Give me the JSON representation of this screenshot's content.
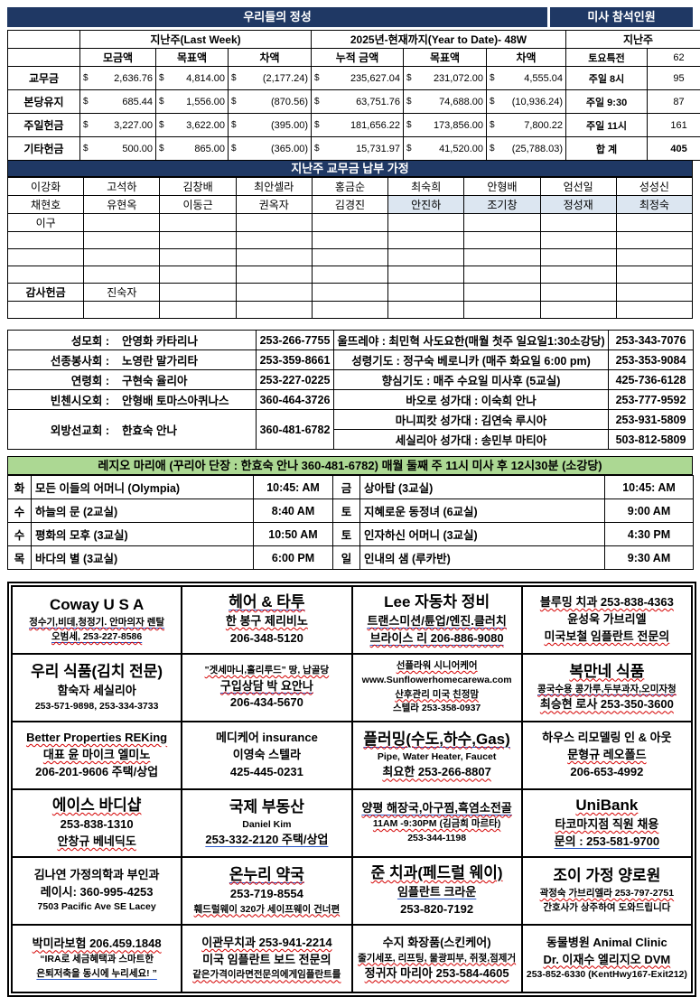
{
  "colors": {
    "navy": "#1F3864",
    "highlight_blue": "#DCE6F1",
    "green": "#ACD893",
    "wavy_red": "#d40000",
    "underline_blue": "#2857c8"
  },
  "offerings": {
    "title": "우리들의 정성",
    "attendance_title": "미사 참석인원",
    "last_week_header": "지난주(Last Week)",
    "ytd_header": "2025년-현재까지(Year to Date)- 48W",
    "attendance_sub": "지난주",
    "currency": "$",
    "col_headers": [
      "모금액",
      "목표액",
      "차액",
      "누적 금액",
      "목표액",
      "차액"
    ],
    "attendance_header_row": {
      "label": "토요특전",
      "value": "62"
    },
    "rows": [
      {
        "label": "교무금",
        "amounts": [
          "2,636.76",
          "4,814.00",
          "(2,177.24)",
          "235,627.04",
          "231,072.00",
          "4,555.04"
        ],
        "att_label": "주일 8시",
        "att_value": "95"
      },
      {
        "label": "본당유지",
        "amounts": [
          "685.44",
          "1,556.00",
          "(870.56)",
          "63,751.76",
          "74,688.00",
          "(10,936.24)"
        ],
        "att_label": "주일 9:30",
        "att_value": "87"
      },
      {
        "label": "주일헌금",
        "amounts": [
          "3,227.00",
          "3,622.00",
          "(395.00)",
          "181,656.22",
          "173,856.00",
          "7,800.22"
        ],
        "att_label": "주일 11시",
        "att_value": "161"
      },
      {
        "label": "기타헌금",
        "amounts": [
          "500.00",
          "865.00",
          "(365.00)",
          "15,731.97",
          "41,520.00",
          "(25,788.03)"
        ],
        "att_label": "합 계",
        "att_value": "405",
        "total_row": true
      }
    ]
  },
  "donors": {
    "title": "지난주 교무금 납부 가정",
    "rows": [
      [
        "이강화",
        "고석하",
        "김창배",
        "최안셀라",
        "홍금순",
        "최숙희",
        "안형배",
        "엄선일",
        "성성신"
      ],
      [
        "채현호",
        "유현옥",
        "이동근",
        "권옥자",
        "김경진",
        "안진하",
        "조기창",
        "정성재",
        "최정숙"
      ],
      [
        "이구",
        "",
        "",
        "",
        "",
        "",
        "",
        "",
        ""
      ],
      [
        "",
        "",
        "",
        "",
        "",
        "",
        "",
        "",
        ""
      ],
      [
        "",
        "",
        "",
        "",
        "",
        "",
        "",
        "",
        ""
      ],
      [
        "",
        "",
        "",
        "",
        "",
        "",
        "",
        "",
        ""
      ],
      [
        "감사헌금",
        "진숙자",
        "",
        "",
        "",
        "",
        "",
        "",
        ""
      ],
      [
        "",
        "",
        "",
        "",
        "",
        "",
        "",
        "",
        ""
      ]
    ],
    "highlight_cells": [
      [
        1,
        5
      ],
      [
        1,
        6
      ],
      [
        1,
        7
      ],
      [
        1,
        8
      ]
    ],
    "bold_cells": [
      [
        6,
        0
      ]
    ]
  },
  "groups": {
    "rows": [
      {
        "left_label": "성모회 :",
        "left_name": "안영화 카타리나",
        "left_phone": "253-266-7755",
        "right_text": "울뜨레야 : 최민혁 사도요한(매월 첫주 일요일1:30소강당)",
        "right_phone": "253-343-7076"
      },
      {
        "left_label": "선종봉사회 :",
        "left_name": "노영란 말가리타",
        "left_phone": "253-359-8661",
        "right_text": "성령기도 : 정구숙 베로니카 (매주 화요일 6:00 pm)",
        "right_phone": "253-353-9084"
      },
      {
        "left_label": "연령회 :",
        "left_name": "구현숙 율리아",
        "left_phone": "253-227-0225",
        "right_text": "향심기도 : 매주 수요일 미사후 (5교실)",
        "right_phone": "425-736-6128"
      },
      {
        "left_label": "빈첸시오회 :",
        "left_name": "안형배 토마스아퀴나스",
        "left_phone": "360-464-3726",
        "right_text": "바오로 성가대 : 이숙희 안나",
        "right_phone": "253-777-9592"
      },
      {
        "left_label": "외방선교회 :",
        "left_name": "한효숙 안나",
        "left_phone": "360-481-6782",
        "left_rowspan": 2,
        "right_text": "마니피캇 성가대 : 김연숙 루시아",
        "right_phone": "253-931-5809"
      },
      {
        "right_text": "세실리아 성가대 :  송민부 마티아",
        "right_phone": "503-812-5809"
      }
    ]
  },
  "legio": {
    "header": "레지오 마리애 (꾸리아 단장 : 한효숙 안나  360-481-6782)  매월 둘째 주 11시  미사 후 12시30분 (소강당)",
    "rows": [
      {
        "day1": "화",
        "name1": "모든 이들의 어머니 (Olympia)",
        "time1": "10:45: AM",
        "day2": "금",
        "name2": "상아탑 (3교실)",
        "time2": "10:45: AM"
      },
      {
        "day1": "수",
        "name1": "하늘의 문 (2교실)",
        "time1": "8:40 AM",
        "day2": "토",
        "name2": "지혜로운 동정녀 (6교실)",
        "time2": "9:00 AM"
      },
      {
        "day1": "수",
        "name1": "평화의 모후 (3교실)",
        "time1": "10:50 AM",
        "day2": "토",
        "name2": "인자하신 어머니 (3교실)",
        "time2": "4:30 PM"
      },
      {
        "day1": "목",
        "name1": "바다의 별 (3교실)",
        "time1": "6:00 PM",
        "day2": "일",
        "name2": "인내의 샘 (루카반)",
        "time2": "9:30 AM"
      }
    ]
  },
  "ads": {
    "rows": [
      [
        {
          "lines": [
            {
              "t": "Coway U S A",
              "s": "lg"
            },
            {
              "t": "정수기,비데,청정기. 안마의자 렌탈",
              "s": "sm",
              "d": "rb"
            },
            {
              "t": "오범세,  253-227-8586",
              "s": "sm",
              "d": "rb"
            }
          ]
        },
        {
          "lines": [
            {
              "t": "헤어  &  타투",
              "s": "lg",
              "d": "rb"
            },
            {
              "t": "한 봉구 제리비노",
              "d": "r"
            },
            {
              "t": "206-348-5120"
            }
          ]
        },
        {
          "lines": [
            {
              "t": "Lee 자동차 정비",
              "s": "lg"
            },
            {
              "t": "트랜스미션/튠업/엔진.클러치",
              "d": "rb"
            },
            {
              "t": "브라이스 리  206-886-9080",
              "d": "rb"
            }
          ]
        },
        {
          "lines": [
            {
              "t": "블루밍 치과 253-838-4363",
              "d": "r"
            },
            {
              "t": "윤성욱 가브리엘"
            },
            {
              "t": "미국보철 임플란트 전문의",
              "d": "r"
            }
          ]
        }
      ],
      [
        {
          "lines": [
            {
              "t": "우리 식품(김치 전문)",
              "s": "lg"
            },
            {
              "t": "함숙자 세실리아"
            },
            {
              "t": "253-571-9898, 253-334-3733",
              "s": "sm"
            }
          ]
        },
        {
          "lines": [
            {
              "t": "\"겟세마니,홀리루드\" 땅, 납골당",
              "s": "sm",
              "d": "r"
            },
            {
              "t": "구입상담   박  요안나",
              "d": "rb"
            },
            {
              "t": "206-434-5670"
            }
          ]
        },
        {
          "lines": [
            {
              "t": "선플라워 시니어케어",
              "s": "sm",
              "d": "r"
            },
            {
              "t": "www.Sunflowerhomecarewa.com",
              "s": "sm"
            },
            {
              "t": "산후관리 미국 친정맘",
              "s": "sm",
              "d": "r"
            },
            {
              "t": "스텔라 253-358-0937",
              "s": "sm"
            }
          ]
        },
        {
          "lines": [
            {
              "t": "복만네 식품",
              "s": "lg",
              "d": "r"
            },
            {
              "t": "콩국수용 콩가루,두부과자,오미자청",
              "s": "sm",
              "d": "rb"
            },
            {
              "t": "최승현 로사 253-350-3600",
              "d": "r"
            }
          ]
        }
      ],
      [
        {
          "lines": [
            {
              "t": "Better Properties REKing",
              "d": "r"
            },
            {
              "t": "대표 윤 마이크 엘미노",
              "d": "r"
            },
            {
              "t": "206-201-9606 주택/상업"
            }
          ]
        },
        {
          "lines": [
            {
              "t": "메디케어 insurance"
            },
            {
              "t": "이영숙 스텔라"
            },
            {
              "t": "425-445-0231"
            }
          ]
        },
        {
          "lines": [
            {
              "t": "플러밍(수도,하수,Gas)",
              "s": "lg",
              "d": "rb"
            },
            {
              "t": "Pipe, Water Heater, Faucet",
              "s": "sm"
            },
            {
              "t": "최요한 253-266-8807",
              "d": "r"
            }
          ]
        },
        {
          "lines": [
            {
              "t": "하우스 리모델링 인 & 아웃"
            },
            {
              "t": "문형규 레오폴드",
              "d": "r"
            },
            {
              "t": "206-653-4992"
            }
          ]
        }
      ],
      [
        {
          "lines": [
            {
              "t": "에이스 바디샵",
              "s": "lg",
              "d": "r"
            },
            {
              "t": "253-838-1310"
            },
            {
              "t": "안창규 베네딕도",
              "d": "r"
            }
          ]
        },
        {
          "lines": [
            {
              "t": "국제 부동산",
              "s": "lg"
            },
            {
              "t": "Daniel Kim",
              "s": "sm"
            },
            {
              "t": "253-332-2120  주택/상업",
              "d": "b"
            }
          ]
        },
        {
          "lines": [
            {
              "t": "양평 해장국,아구찜,흑염소전골",
              "d": "rb"
            },
            {
              "t": "11AM -9:30PM (김금희 마르타)",
              "s": "sm",
              "d": "r"
            },
            {
              "t": "253-344-1198",
              "s": "sm"
            }
          ]
        },
        {
          "lines": [
            {
              "t": "UniBank",
              "s": "lg",
              "d": "r"
            },
            {
              "t": "타코마지점 직원 채용",
              "d": "r"
            },
            {
              "t": "문의 : 253-581-9700",
              "d": "b"
            }
          ]
        }
      ],
      [
        {
          "lines": [
            {
              "t": "김나연 가정의학과 부인과"
            },
            {
              "t": "레이시: 360-995-4253"
            },
            {
              "t": "7503 Pacific Ave SE Lacey",
              "s": "sm"
            }
          ]
        },
        {
          "lines": [
            {
              "t": "온누리  약국",
              "s": "lg",
              "d": "rb"
            },
            {
              "t": "253-719-8554"
            },
            {
              "t": "훼드럴웨이 320가 세이프웨이 건너편",
              "s": "sm",
              "d": "r"
            }
          ]
        },
        {
          "lines": [
            {
              "t": "준 치과(페드럴 웨이)",
              "s": "lg",
              "d": "r"
            },
            {
              "t": "임플란트  크라운",
              "d": "b"
            },
            {
              "t": "253-820-7192"
            }
          ]
        },
        {
          "lines": [
            {
              "t": "조이 가정 양로원",
              "s": "lg"
            },
            {
              "t": "곽정숙 가브리엘라 253-797-2751",
              "s": "sm",
              "d": "r"
            },
            {
              "t": "간호사가 상주하여 도와드립니다",
              "s": "sm"
            }
          ]
        }
      ],
      [
        {
          "lines": [
            {
              "t": "박미라보험 206.459.1848",
              "d": "r"
            },
            {
              "t": "“IRA로 세금혜택과 스마트한",
              "s": "sm"
            },
            {
              "t": "은퇴저축을 동시에 누리세요! ”",
              "s": "sm",
              "d": "b"
            }
          ]
        },
        {
          "lines": [
            {
              "t": "이관무치과 253-941-2214",
              "d": "r"
            },
            {
              "t": "미국 임플란트 보드 전문의"
            },
            {
              "t": "같은가격이라면전문의에게임플란트를",
              "s": "sm",
              "d": "r"
            }
          ]
        },
        {
          "lines": [
            {
              "t": "수지 화장품(스킨케어)"
            },
            {
              "t": "줄기세포, 리프팅, 물광피부, 쥐젖,점제거",
              "s": "sm",
              "d": "r"
            },
            {
              "t": "정귀자 마리아 253-584-4605",
              "d": "r"
            }
          ]
        },
        {
          "lines": [
            {
              "t": "동물병원 Animal Clinic"
            },
            {
              "t": "Dr. 이재수 엘리지오 DVM",
              "d": "r"
            },
            {
              "t": "253-852-6330 (KentHwy167-Exit212)",
              "s": "sm"
            }
          ]
        }
      ]
    ]
  }
}
